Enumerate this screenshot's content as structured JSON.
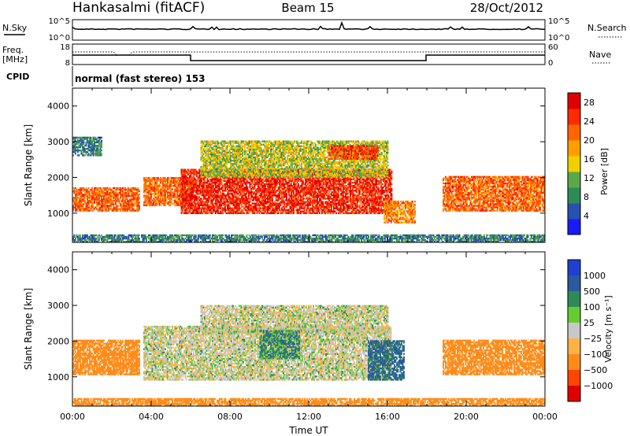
{
  "header": {
    "station": "Hankasalmi (fitACF)",
    "beam": "Beam 15",
    "date": "28/Oct/2012"
  },
  "strip_panels": {
    "nsky_label": "N.Sky",
    "nsearch_label": "N.Search",
    "freq_label_1": "Freq.",
    "freq_label_2": "[MHz]",
    "nave_label": "Nave",
    "cpid_label": "CPID",
    "cpid_text": "normal (fast stereo) 153",
    "noise_ticks_left": [
      "10^5",
      "10^0"
    ],
    "noise_ticks_right": [
      "10^5",
      "10^0"
    ],
    "freq_ticks": [
      "18",
      "8"
    ],
    "nave_ticks": [
      "60",
      "0"
    ]
  },
  "colors": {
    "power_scale": [
      "#1a1aff",
      "#2850b0",
      "#2e8b57",
      "#5aa84a",
      "#f0d000",
      "#ffa000",
      "#ff6600",
      "#ff2a00",
      "#e00000"
    ],
    "velocity_scale": [
      "#2040d0",
      "#2a5aa0",
      "#2e8b57",
      "#66cc33",
      "#c8c8c8",
      "#ffb347",
      "#ff8c1a",
      "#ff4500",
      "#e00000"
    ]
  },
  "chart_data": [
    {
      "type": "heatmap",
      "name": "power",
      "title": "",
      "xlabel": "",
      "ylabel": "Slant Range [km]",
      "xlim": [
        "00:00",
        "24:00"
      ],
      "ylim": [
        180,
        4500
      ],
      "yticks": [
        1000,
        2000,
        3000,
        4000
      ],
      "colorbar_label": "Power [dB]",
      "colorbar_ticks": [
        4,
        8,
        12,
        16,
        20,
        24,
        28
      ],
      "colorbar_range": [
        0,
        30
      ],
      "regions": [
        {
          "t0": 0.0,
          "t1": 3.4,
          "r0": 1050,
          "r1": 1700,
          "value": 22
        },
        {
          "t0": 0.0,
          "t1": 1.5,
          "r0": 2600,
          "r1": 3100,
          "value": 8
        },
        {
          "t0": 3.6,
          "t1": 6.0,
          "r0": 1200,
          "r1": 2000,
          "value": 22
        },
        {
          "t0": 5.5,
          "t1": 16.2,
          "r0": 980,
          "r1": 2200,
          "value": 26
        },
        {
          "t0": 6.5,
          "t1": 16.0,
          "r0": 2000,
          "r1": 3000,
          "value": 14
        },
        {
          "t0": 13.0,
          "t1": 15.5,
          "r0": 2500,
          "r1": 2900,
          "value": 24
        },
        {
          "t0": 15.8,
          "t1": 17.4,
          "r0": 720,
          "r1": 1350,
          "value": 20
        },
        {
          "t0": 18.8,
          "t1": 24.0,
          "r0": 1050,
          "r1": 2000,
          "value": 22
        },
        {
          "t0": 0.0,
          "t1": 24.0,
          "r0": 180,
          "r1": 400,
          "value": 8
        }
      ]
    },
    {
      "type": "heatmap",
      "name": "velocity",
      "title": "",
      "xlabel": "Time UT",
      "ylabel": "Slant Range [km]",
      "xlim": [
        "00:00",
        "24:00"
      ],
      "xticks": [
        "00:00",
        "04:00",
        "08:00",
        "12:00",
        "16:00",
        "20:00",
        "00:00"
      ],
      "ylim": [
        180,
        4500
      ],
      "yticks": [
        1000,
        2000,
        3000,
        4000
      ],
      "colorbar_label": "Velocity [m s⁻¹]",
      "colorbar_ticks": [
        "1000",
        "500",
        "100",
        "25",
        "−25",
        "−100",
        "−500",
        "−1000"
      ],
      "regions": [
        {
          "t0": 0.0,
          "t1": 3.4,
          "r0": 1050,
          "r1": 2000,
          "value": -200
        },
        {
          "t0": 3.6,
          "t1": 16.2,
          "r0": 900,
          "r1": 2400,
          "value": 0
        },
        {
          "t0": 6.5,
          "t1": 16.0,
          "r0": 2200,
          "r1": 3000,
          "value": 0
        },
        {
          "t0": 9.5,
          "t1": 11.5,
          "r0": 1500,
          "r1": 2300,
          "value": 80
        },
        {
          "t0": 15.0,
          "t1": 16.8,
          "r0": 900,
          "r1": 2000,
          "value": 120
        },
        {
          "t0": 18.8,
          "t1": 24.0,
          "r0": 1050,
          "r1": 2000,
          "value": -200
        },
        {
          "t0": 0.0,
          "t1": 24.0,
          "r0": 180,
          "r1": 400,
          "value": -150
        }
      ]
    }
  ]
}
